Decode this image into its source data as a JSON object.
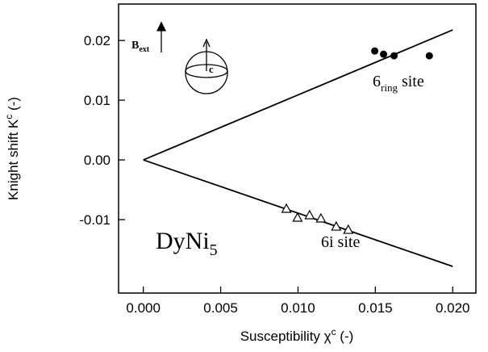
{
  "chart_data": {
    "type": "scatter",
    "xlabel": {
      "text": "Susceptibility χ",
      "sup": "c",
      "after": " (-)"
    },
    "ylabel": {
      "text": "Knight shift K",
      "sup": "c",
      "after": " (-)"
    },
    "xlim": [
      -0.0016,
      0.0215
    ],
    "ylim": [
      -0.0223,
      0.0261
    ],
    "xticks": [
      {
        "value": 0,
        "label": "0.000"
      },
      0.005,
      {
        "value": 0.01,
        "label": "0.010"
      },
      0.015,
      {
        "value": 0.02,
        "label": "0.020"
      }
    ],
    "yticks": [
      0.02,
      0.01,
      {
        "value": 0,
        "label": "0.00"
      },
      -0.01
    ],
    "series": [
      {
        "marker": "line",
        "color": "#000000",
        "x": [
          0,
          0.02
        ],
        "values": [
          0,
          0.02176
        ]
      },
      {
        "marker": "line",
        "color": "#000000",
        "x": [
          0,
          0.02
        ],
        "values": [
          0,
          -0.01784
        ]
      },
      {
        "marker": "circle",
        "color": "#000000",
        "x": [
          0.01496,
          0.01553,
          0.01621,
          0.01849
        ],
        "values": [
          0.01824,
          0.0177,
          0.01743,
          0.01743
        ]
      },
      {
        "marker": "triangle",
        "color": "#000000",
        "x": [
          0.00925,
          0.00997,
          0.01075,
          0.01148,
          0.01247,
          0.01325
        ],
        "values": [
          -0.00824,
          -0.00973,
          -0.00932,
          -0.00986,
          -0.01122,
          -0.01176
        ]
      }
    ],
    "annotations": [
      {
        "text": "DyNi",
        "sub": "5"
      },
      {
        "text": "6i site"
      },
      {
        "text": "6",
        "sub": "ring",
        "after": " site"
      },
      {
        "text": "B",
        "sub": "ext"
      },
      {
        "text": "c"
      }
    ]
  }
}
